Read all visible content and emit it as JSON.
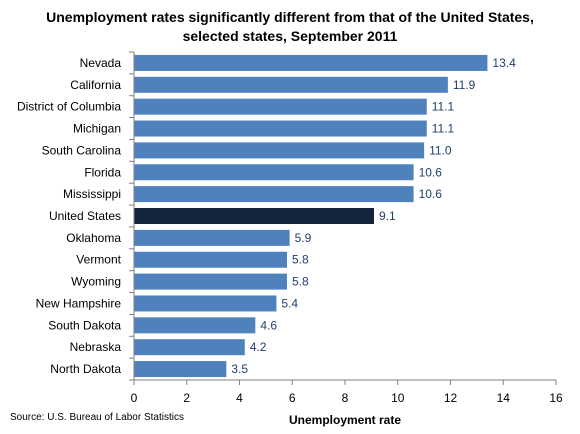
{
  "title_line1": "Unemployment rates significantly different from that of the United States,",
  "title_line2": "selected states, September 2011",
  "source": "Source: U.S. Bureau of Labor Statistics",
  "chart_data": {
    "type": "bar",
    "orientation": "horizontal",
    "categories": [
      "Nevada",
      "California",
      "District of Columbia",
      "Michigan",
      "South Carolina",
      "Florida",
      "Mississippi",
      "United States",
      "Oklahoma",
      "Vermont",
      "Wyoming",
      "New Hampshire",
      "South Dakota",
      "Nebraska",
      "North Dakota"
    ],
    "values": [
      13.4,
      11.9,
      11.1,
      11.1,
      11.0,
      10.6,
      10.6,
      9.1,
      5.9,
      5.8,
      5.8,
      5.4,
      4.6,
      4.2,
      3.5
    ],
    "value_labels": [
      "13.4",
      "11.9",
      "11.1",
      "11.1",
      "11.0",
      "10.6",
      "10.6",
      "9.1",
      "5.9",
      "5.8",
      "5.8",
      "5.4",
      "4.6",
      "4.2",
      "3.5"
    ],
    "xlabel": "Unemployment rate",
    "ylabel": "",
    "xlim": [
      0,
      16
    ],
    "xticks": [
      0,
      2,
      4,
      6,
      8,
      10,
      12,
      14,
      16
    ],
    "grid": false,
    "bar_color": "#4f81bd",
    "highlight_category": "United States",
    "highlight_color": "#14243d",
    "value_label_color": "#1f3f6e"
  }
}
